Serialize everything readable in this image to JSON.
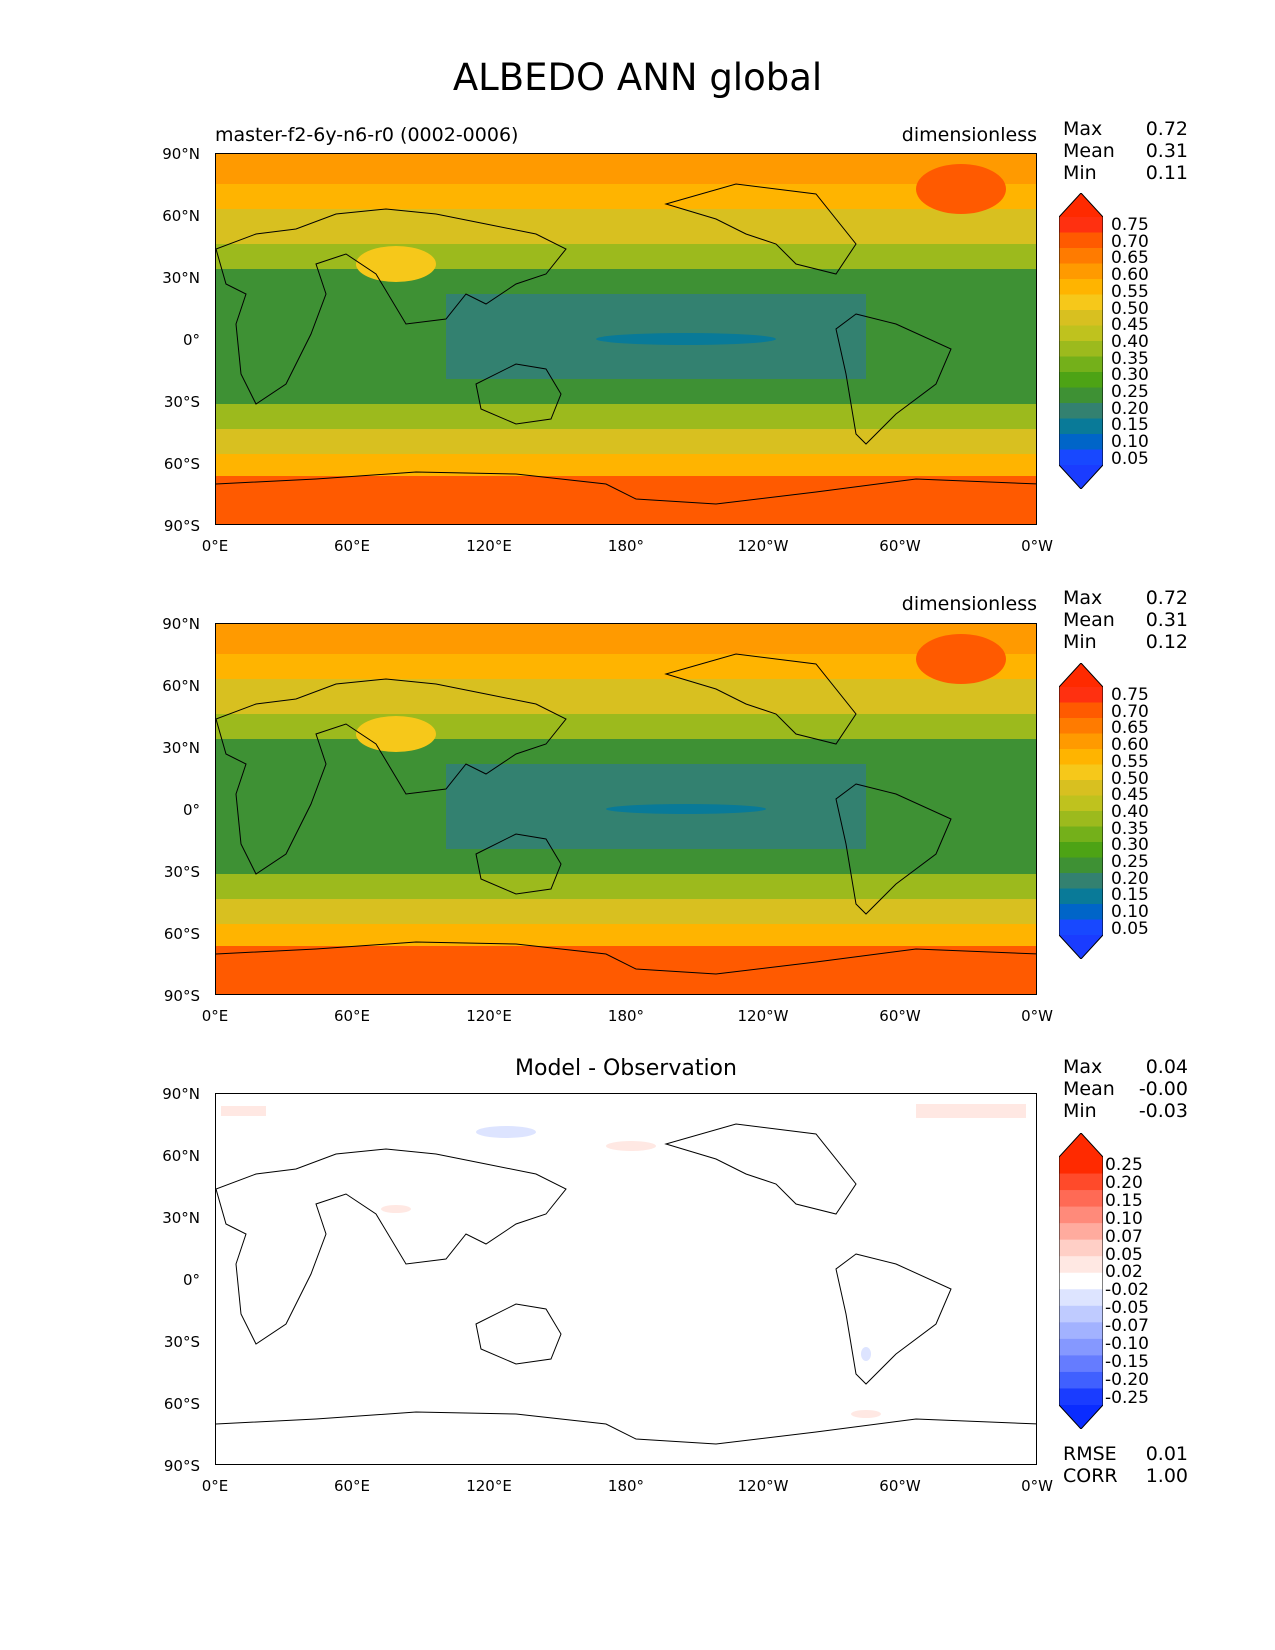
{
  "figure": {
    "title": "ALBEDO ANN global"
  },
  "panels": [
    {
      "left_label": "master-f2-6y-n6-r0 (0002-0006)",
      "units": "dimensionless",
      "stats": [
        {
          "name": "Max",
          "value": "0.72"
        },
        {
          "name": "Mean",
          "value": "0.31"
        },
        {
          "name": "Min",
          "value": "0.11"
        }
      ]
    },
    {
      "left_label": "",
      "units": "dimensionless",
      "stats": [
        {
          "name": "Max",
          "value": "0.72"
        },
        {
          "name": "Mean",
          "value": "0.31"
        },
        {
          "name": "Min",
          "value": "0.12"
        }
      ]
    },
    {
      "center_label": "Model - Observation",
      "stats": [
        {
          "name": "Max",
          "value": "0.04"
        },
        {
          "name": "Mean",
          "value": "-0.00"
        },
        {
          "name": "Min",
          "value": "-0.03"
        }
      ],
      "metrics": [
        {
          "name": "RMSE",
          "value": "0.01"
        },
        {
          "name": "CORR",
          "value": "1.00"
        }
      ]
    }
  ],
  "axes": {
    "yticks": [
      "90°N",
      "60°N",
      "30°N",
      "0°",
      "30°S",
      "60°S",
      "90°S"
    ],
    "xticks": [
      "0°E",
      "60°E",
      "120°E",
      "180°",
      "120°W",
      "60°W",
      "0°W"
    ]
  },
  "colorbars": {
    "albedo": {
      "labels": [
        "0.75",
        "0.70",
        "0.65",
        "0.60",
        "0.55",
        "0.50",
        "0.45",
        "0.40",
        "0.35",
        "0.30",
        "0.25",
        "0.20",
        "0.15",
        "0.10",
        "0.05"
      ],
      "colors": [
        "#ff3010",
        "#ff5a00",
        "#ff7b00",
        "#ff9a00",
        "#ffb400",
        "#f6c81a",
        "#d8c020",
        "#bfc21e",
        "#9cba1d",
        "#74b01a",
        "#4da315",
        "#3e9134",
        "#338170",
        "#097a98",
        "#0065c8",
        "#1848ff"
      ],
      "over_color": "#ff2a00",
      "under_color": "#1a3cff"
    },
    "diff": {
      "labels": [
        "0.25",
        "0.20",
        "0.15",
        "0.10",
        "0.07",
        "0.05",
        "0.02",
        "-0.02",
        "-0.05",
        "-0.07",
        "-0.10",
        "-0.15",
        "-0.20",
        "-0.25"
      ],
      "colors": [
        "#ff2a00",
        "#ff4a2a",
        "#ff6a55",
        "#ff8a7a",
        "#ffab9e",
        "#ffcfc6",
        "#ffe8e3",
        "#ffffff",
        "#dde4ff",
        "#bfcbff",
        "#a2b2ff",
        "#8598ff",
        "#657cff",
        "#4060ff",
        "#1a3cff"
      ],
      "over_color": "#ff2a00",
      "under_color": "#0a2cff"
    }
  }
}
